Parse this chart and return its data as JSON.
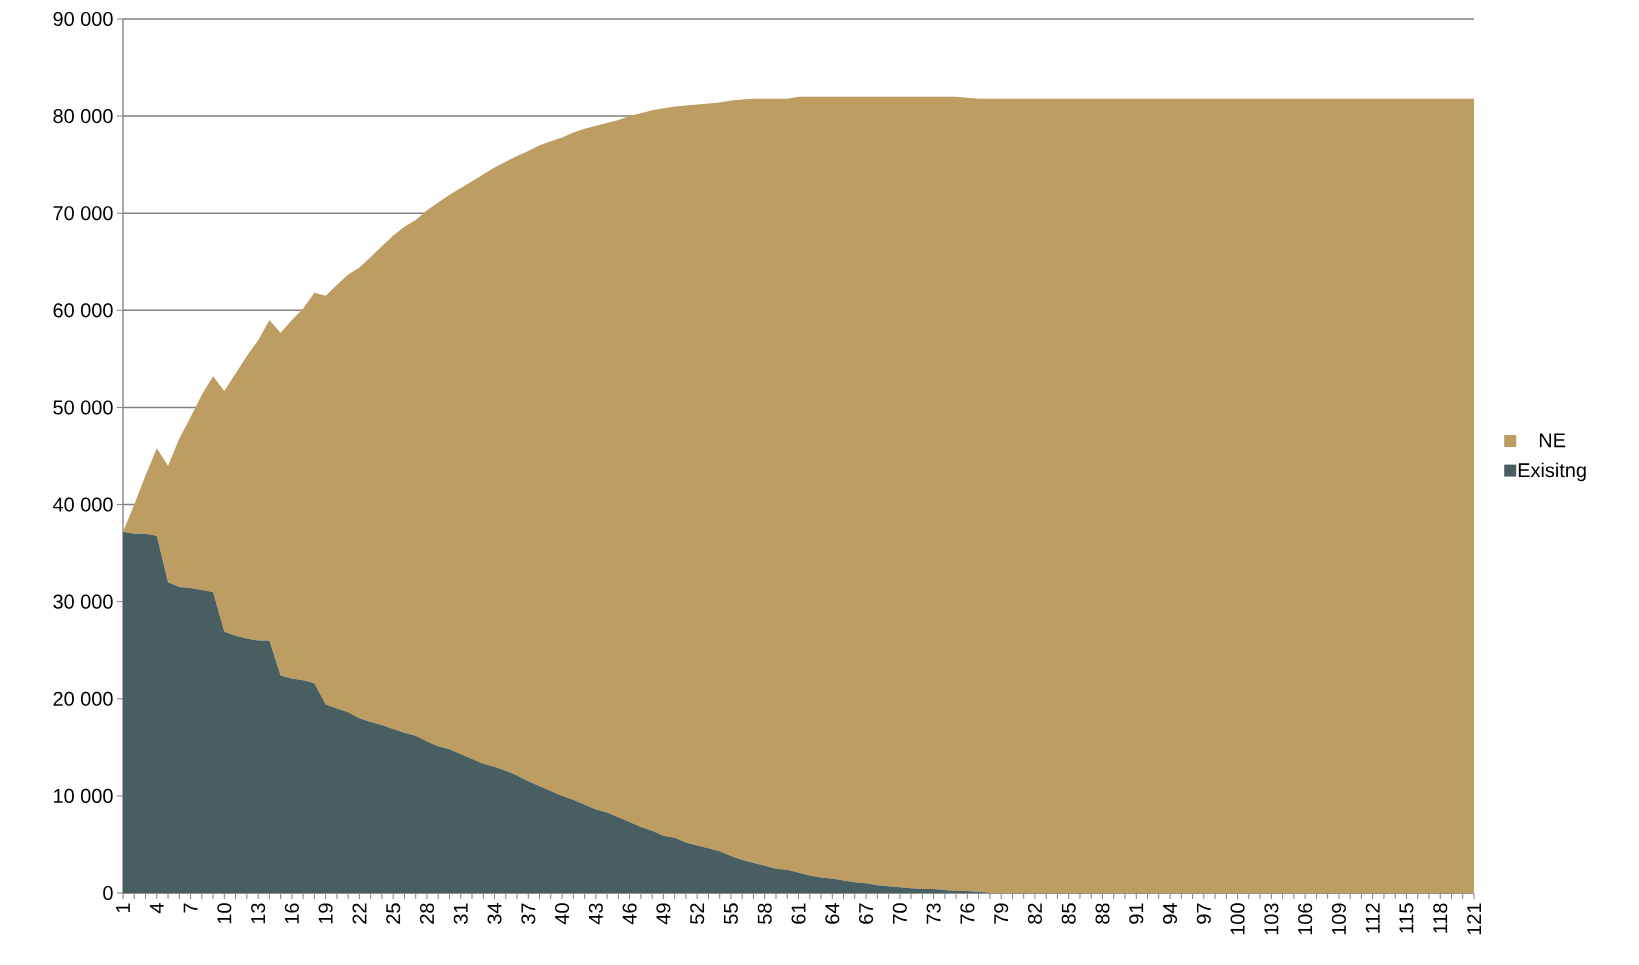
{
  "chart_data": {
    "type": "area",
    "stacked": true,
    "grid": "y",
    "legend": "right",
    "categories": [
      "1",
      null,
      null,
      "4",
      null,
      null,
      "7",
      null,
      null,
      "10",
      null,
      null,
      "13",
      null,
      null,
      "16",
      null,
      null,
      "19",
      null,
      null,
      "22",
      null,
      null,
      "25",
      null,
      null,
      "28",
      null,
      null,
      "31",
      null,
      null,
      "34",
      null,
      null,
      "37",
      null,
      null,
      "40",
      null,
      null,
      "43",
      null,
      null,
      "46",
      null,
      null,
      "49",
      null,
      null,
      "52",
      null,
      null,
      "55",
      null,
      null,
      "58",
      null,
      null,
      "61",
      null,
      null,
      "64",
      null,
      null,
      "67",
      null,
      null,
      "70",
      null,
      null,
      "73",
      null,
      null,
      "76",
      null,
      null,
      "79",
      null,
      null,
      "82",
      null,
      null,
      "85",
      null,
      null,
      "88",
      null,
      null,
      "91",
      null,
      null,
      "94",
      null,
      null,
      "97",
      null,
      null,
      "100",
      null,
      null,
      "103",
      null,
      null,
      "106",
      null,
      null,
      "109",
      null,
      null,
      "112",
      null,
      null,
      "115",
      null,
      null,
      "118",
      null,
      null,
      "121"
    ],
    "ylim": [
      0,
      90000
    ],
    "yticks": [
      {
        "value": 0,
        "label": "0"
      },
      {
        "value": 10000,
        "label": "10 000"
      },
      {
        "value": 20000,
        "label": "20 000"
      },
      {
        "value": 30000,
        "label": "30 000"
      },
      {
        "value": 40000,
        "label": "40 000"
      },
      {
        "value": 50000,
        "label": "50 000"
      },
      {
        "value": 60000,
        "label": "60 000"
      },
      {
        "value": 70000,
        "label": "70 000"
      },
      {
        "value": 80000,
        "label": "80 000"
      },
      {
        "value": 90000,
        "label": "90 000"
      }
    ],
    "series": [
      {
        "name": "Exisitng",
        "color": "#495e60",
        "values": [
          37200,
          37000,
          37000,
          36800,
          32000,
          31500,
          31400,
          31200,
          31000,
          26900,
          26500,
          26200,
          26000,
          26000,
          22400,
          22100,
          21900,
          21600,
          19400,
          19000,
          18600,
          18000,
          17600,
          17300,
          16900,
          16500,
          16200,
          15600,
          15100,
          14800,
          14300,
          13800,
          13300,
          13000,
          12600,
          12100,
          11500,
          11000,
          10500,
          10000,
          9600,
          9100,
          8600,
          8300,
          7800,
          7300,
          6800,
          6400,
          5900,
          5700,
          5200,
          4900,
          4600,
          4300,
          3800,
          3400,
          3100,
          2800,
          2500,
          2400,
          2100,
          1800,
          1600,
          1500,
          1300,
          1100,
          1000,
          800,
          700,
          600,
          500,
          400,
          400,
          300,
          200,
          200,
          100,
          0,
          0,
          0,
          0,
          0,
          0,
          0,
          0,
          0,
          0,
          0,
          0,
          0,
          0,
          0,
          0,
          0,
          0,
          0,
          0,
          0,
          0,
          0,
          0,
          0,
          0,
          0,
          0,
          0,
          0,
          0,
          0,
          0,
          0,
          0,
          0,
          0,
          0,
          0,
          0,
          0,
          0,
          0,
          0
        ]
      },
      {
        "name": "NE",
        "color": "#be9d63",
        "values": [
          0,
          3000,
          6000,
          9000,
          12000,
          15300,
          17600,
          20100,
          22200,
          24800,
          27000,
          29100,
          30900,
          33000,
          35300,
          36900,
          38300,
          40200,
          42100,
          43600,
          45100,
          46400,
          47900,
          49300,
          50800,
          52100,
          53100,
          54700,
          56000,
          57100,
          58300,
          59500,
          60700,
          61700,
          62700,
          63800,
          64900,
          66000,
          66900,
          67800,
          68700,
          69600,
          70400,
          71000,
          71800,
          72700,
          73500,
          74200,
          74900,
          75300,
          75900,
          76300,
          76700,
          77100,
          77800,
          78300,
          78700,
          79000,
          79300,
          79400,
          79900,
          80200,
          80400,
          80500,
          80700,
          80900,
          81000,
          81200,
          81300,
          81400,
          81500,
          81600,
          81600,
          81700,
          81800,
          81700,
          81700,
          81800,
          81800,
          81800,
          81800,
          81800,
          81800,
          81800,
          81800,
          81800,
          81800,
          81800,
          81800,
          81800,
          81800,
          81800,
          81800,
          81800,
          81800,
          81800,
          81800,
          81800,
          81800,
          81800,
          81800,
          81800,
          81800,
          81800,
          81800,
          81800,
          81800,
          81800,
          81800,
          81800,
          81800,
          81800,
          81800,
          81800,
          81800,
          81800,
          81800,
          81800,
          81800,
          81800,
          81800
        ]
      }
    ]
  }
}
